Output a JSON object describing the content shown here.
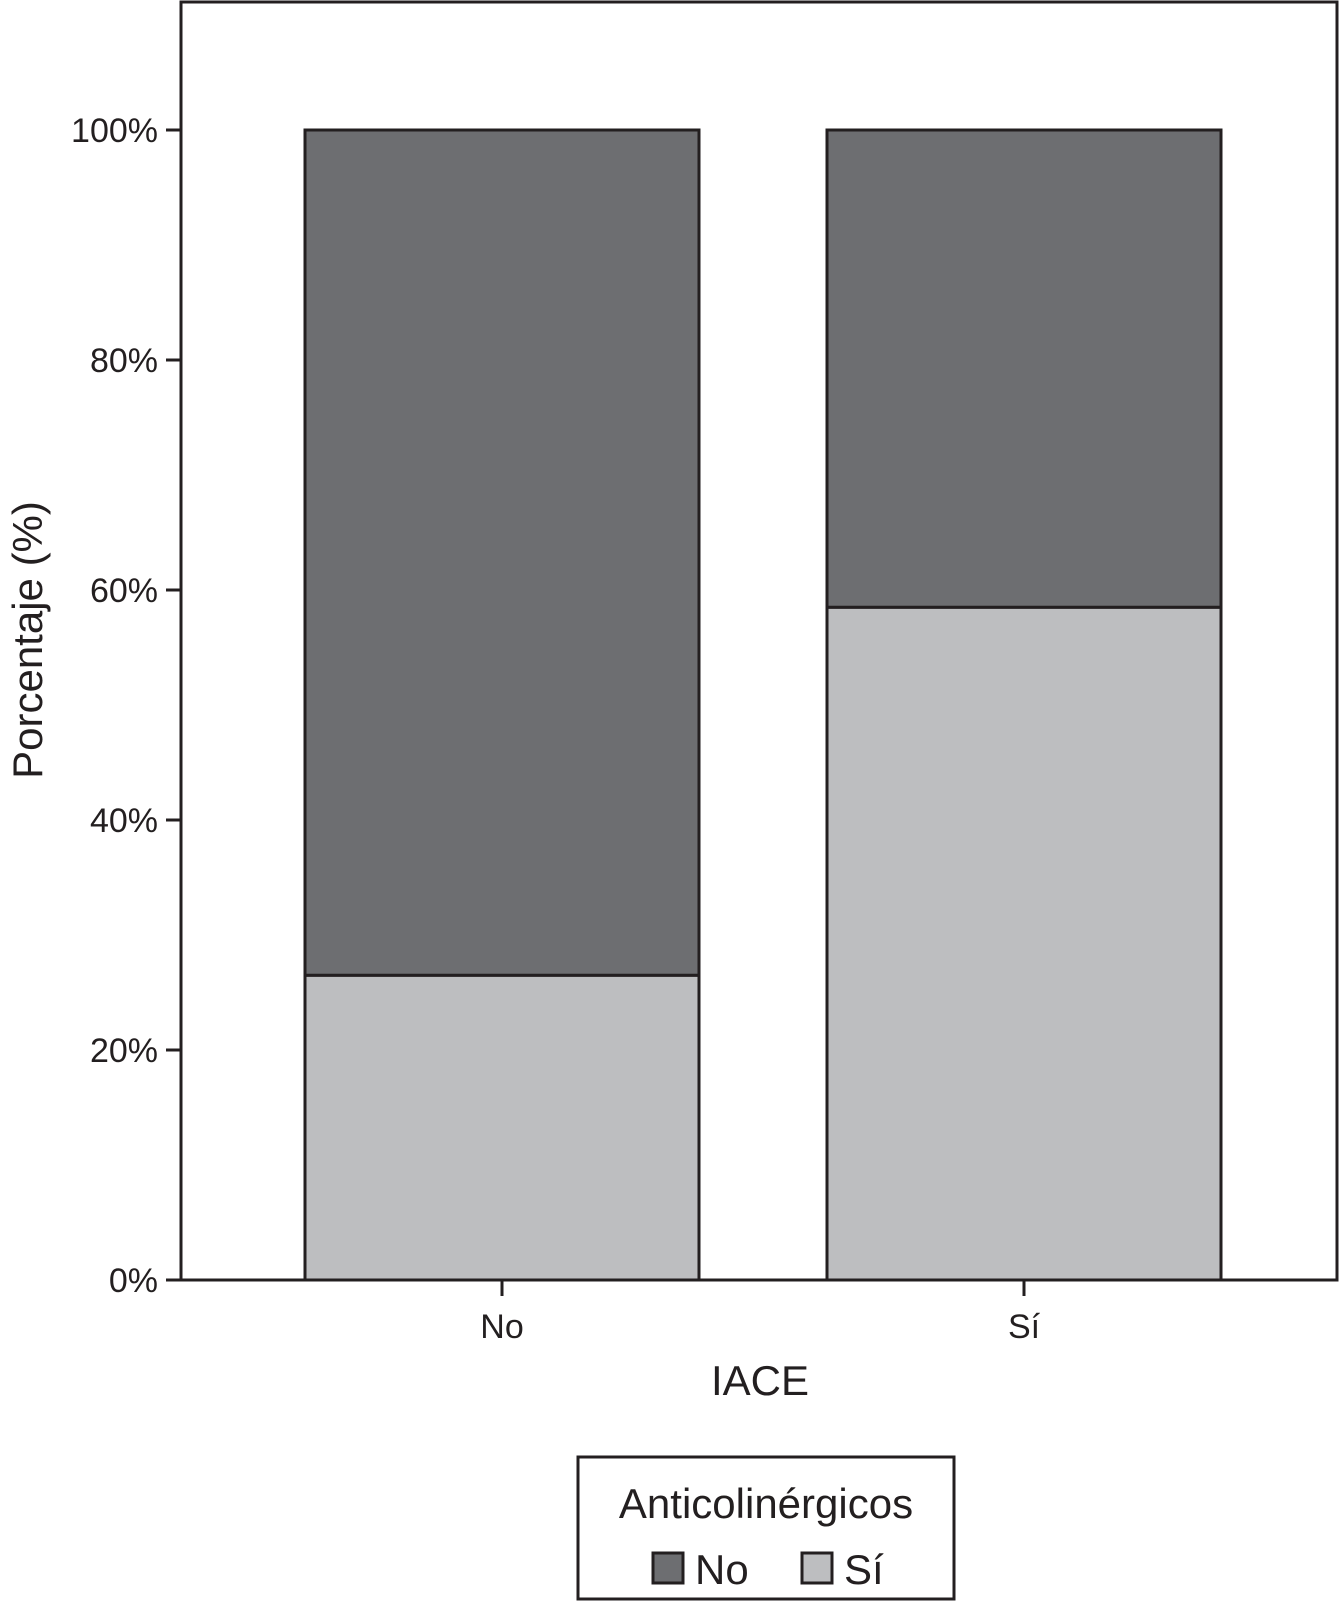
{
  "chart_data": {
    "type": "bar",
    "stacked": true,
    "categories": [
      "No",
      "Sí"
    ],
    "series": [
      {
        "name": "Sí",
        "values": [
          26.5,
          58.5
        ],
        "color": "#bdbec0"
      },
      {
        "name": "No",
        "values": [
          73.5,
          41.5
        ],
        "color": "#6d6e71"
      }
    ],
    "xlabel": "IACE",
    "ylabel": "Porcentaje (%)",
    "ylim": [
      0,
      100
    ],
    "yticks": [
      0,
      20,
      40,
      60,
      80,
      100
    ],
    "ytick_labels": [
      "0%",
      "20%",
      "40%",
      "60%",
      "80%",
      "100%"
    ],
    "grid": false,
    "legend": {
      "title": "Anticolinérgicos",
      "placement": "bottom-center",
      "entries": [
        {
          "label": "No",
          "color": "#6d6e71"
        },
        {
          "label": "Sí",
          "color": "#bdbec0"
        }
      ]
    }
  }
}
